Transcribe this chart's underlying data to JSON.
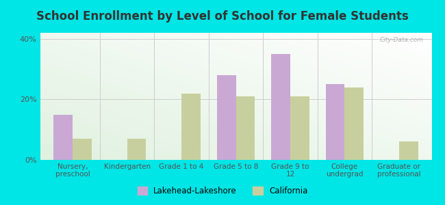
{
  "title": "School Enrollment by Level of School for Female Students",
  "categories": [
    "Nursery,\npreschool",
    "Kindergarten",
    "Grade 1 to 4",
    "Grade 5 to 8",
    "Grade 9 to\n12",
    "College\nundergrad",
    "Graduate or\nprofessional"
  ],
  "lakehead_values": [
    15,
    0,
    0,
    28,
    35,
    25,
    0
  ],
  "california_values": [
    7,
    7,
    22,
    21,
    21,
    24,
    6
  ],
  "lakehead_color": "#c9a8d4",
  "california_color": "#c8cf9e",
  "background_color": "#00e5e5",
  "ylim": [
    0,
    42
  ],
  "yticks": [
    0,
    20,
    40
  ],
  "ytick_labels": [
    "0%",
    "20%",
    "40%"
  ],
  "title_fontsize": 12,
  "legend_labels": [
    "Lakehead-Lakeshore",
    "California"
  ],
  "bar_width": 0.35,
  "grid_color": "#cccccc",
  "watermark": "City-Data.com"
}
